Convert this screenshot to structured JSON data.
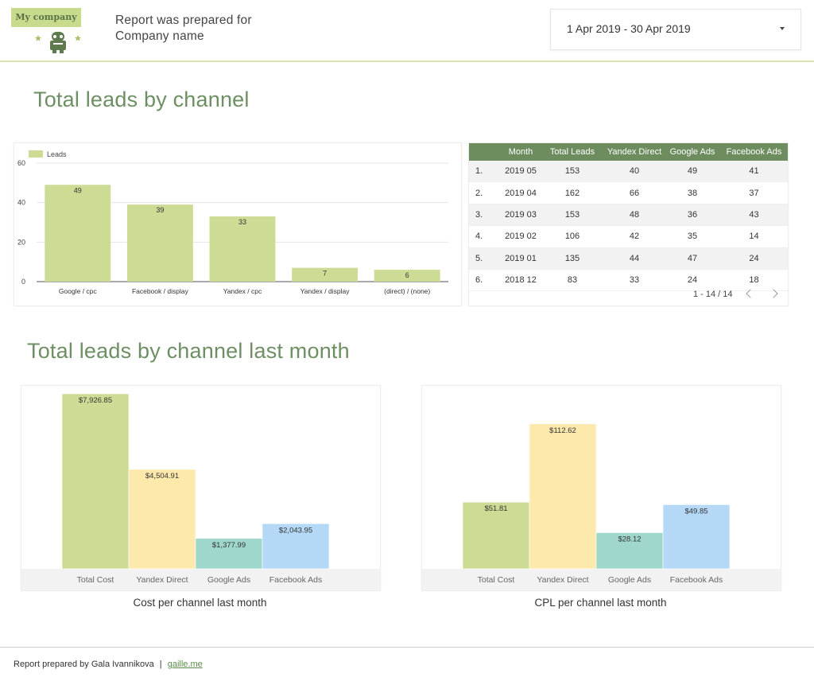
{
  "header": {
    "logo_text": "My company",
    "report_line1": "Report was prepared for",
    "report_line2": "Company name",
    "date_range": "1 Apr 2019 - 30 Apr 2019"
  },
  "sections": {
    "title1": "Total leads by channel",
    "title2": "Total leads by channel last month"
  },
  "table": {
    "columns": [
      "",
      "Month",
      "Total Leads",
      "Yandex Direct",
      "Google Ads",
      "Facebook Ads"
    ],
    "rows": [
      [
        "1.",
        "2019 05",
        "153",
        "40",
        "49",
        "41"
      ],
      [
        "2.",
        "2019 04",
        "162",
        "66",
        "38",
        "37"
      ],
      [
        "3.",
        "2019 03",
        "153",
        "48",
        "36",
        "43"
      ],
      [
        "4.",
        "2019 02",
        "106",
        "42",
        "35",
        "14"
      ],
      [
        "5.",
        "2019 01",
        "135",
        "44",
        "47",
        "24"
      ],
      [
        "6.",
        "2018 12",
        "83",
        "33",
        "24",
        "18"
      ]
    ],
    "pagination": "1 - 14 / 14"
  },
  "chart_data": [
    {
      "type": "bar",
      "legend": "Leads",
      "categories": [
        "Google / cpc",
        "Facebook / display",
        "Yandex / cpc",
        "Yandex / display",
        "(direct) / (none)"
      ],
      "values": [
        49,
        39,
        33,
        7,
        6
      ],
      "ylim": [
        0,
        60
      ],
      "yticks": [
        0,
        20,
        40,
        60
      ],
      "grid": true,
      "legend_position": "top-left",
      "color": "#cddc95"
    },
    {
      "type": "bar",
      "title": "Cost per channel last month",
      "categories": [
        "Total Cost",
        "Yandex Direct",
        "Google Ads",
        "Facebook Ads"
      ],
      "values": [
        7926.85,
        4504.91,
        1377.99,
        2043.95
      ],
      "labels": [
        "$7,926.85",
        "$4,504.91",
        "$1,377.99",
        "$2,043.95"
      ],
      "ylim": [
        0,
        7926.85
      ],
      "colors": [
        "#cddc95",
        "#fde9ac",
        "#9fd7cc",
        "#b5d8f7"
      ]
    },
    {
      "type": "bar",
      "title": "CPL per channel last month",
      "categories": [
        "Total Cost",
        "Yandex Direct",
        "Google Ads",
        "Facebook Ads"
      ],
      "values": [
        51.81,
        112.62,
        28.12,
        49.85
      ],
      "labels": [
        "$51.81",
        "$112.62",
        "$28.12",
        "$49.85"
      ],
      "ylim": [
        0,
        136
      ],
      "colors": [
        "#cddc95",
        "#fde9ac",
        "#9fd7cc",
        "#b5d8f7"
      ]
    }
  ],
  "footer": {
    "text": "Report prepared by Gala Ivannikova",
    "separator": "|",
    "link": "gaille.me"
  }
}
